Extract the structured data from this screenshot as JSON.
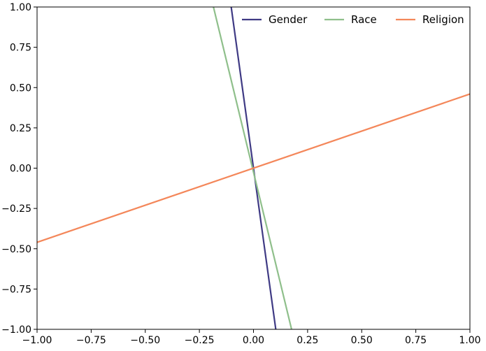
{
  "chart_data": {
    "type": "line",
    "title": "",
    "xlabel": "",
    "ylabel": "",
    "xlim": [
      -1.0,
      1.0
    ],
    "ylim": [
      -1.0,
      1.0
    ],
    "grid": false,
    "legend_position": "top-right",
    "x_ticks": [
      "−1.00",
      "−0.75",
      "−0.50",
      "−0.25",
      "0.00",
      "0.25",
      "0.50",
      "0.75",
      "1.00"
    ],
    "y_ticks": [
      "1.00",
      "0.75",
      "0.50",
      "0.25",
      "0.00",
      "−0.25",
      "−0.50",
      "−0.75",
      "−1.00"
    ],
    "series": [
      {
        "name": "Gender",
        "color": "#3f3a84",
        "x": [
          -0.103,
          0.103
        ],
        "y": [
          1.0,
          -1.0
        ]
      },
      {
        "name": "Race",
        "color": "#8fbf8b",
        "x": [
          -0.185,
          0.176
        ],
        "y": [
          1.0,
          -1.0
        ]
      },
      {
        "name": "Religion",
        "color": "#f4875a",
        "x": [
          -1.0,
          1.0
        ],
        "y": [
          -0.46,
          0.46
        ]
      }
    ]
  }
}
